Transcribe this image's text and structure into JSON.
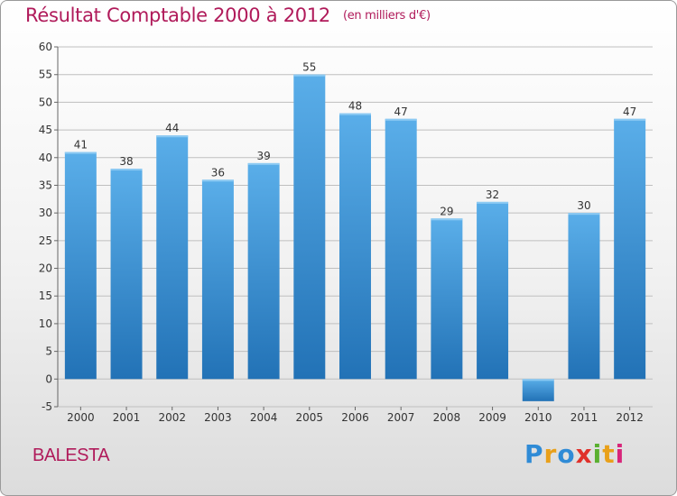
{
  "title": "Résultat Comptable 2000 à 2012",
  "unit": "(en milliers d'€)",
  "commune": "BALESTA",
  "logo_text": "Proxiti",
  "colors": {
    "title": "#b01a5a",
    "bar_top": "#5aaee9",
    "bar_bottom": "#2272b6",
    "grid": "#bfbfbf",
    "logo": [
      "#2f8bd6",
      "#e9a01a",
      "#2f8bd6",
      "#e0302a",
      "#5ab030",
      "#e9a01a",
      "#d8257a"
    ]
  },
  "chart_data": {
    "type": "bar",
    "title": "Résultat Comptable 2000 à 2012",
    "subtitle": "(en milliers d'€)",
    "xlabel": "",
    "ylabel": "",
    "categories": [
      "2000",
      "2001",
      "2002",
      "2003",
      "2004",
      "2005",
      "2006",
      "2007",
      "2008",
      "2009",
      "2010",
      "2011",
      "2012"
    ],
    "values": [
      41,
      38,
      44,
      36,
      39,
      55,
      48,
      47,
      29,
      32,
      -4,
      30,
      47
    ],
    "value_labels": [
      "41",
      "38",
      "44",
      "36",
      "39",
      "55",
      "48",
      "47",
      "29",
      "32",
      "",
      "30",
      "47"
    ],
    "ylim": [
      -5,
      60
    ],
    "yticks": [
      -5,
      0,
      5,
      10,
      15,
      20,
      25,
      30,
      35,
      40,
      45,
      50,
      55,
      60
    ],
    "grid": true,
    "legend": "none"
  }
}
